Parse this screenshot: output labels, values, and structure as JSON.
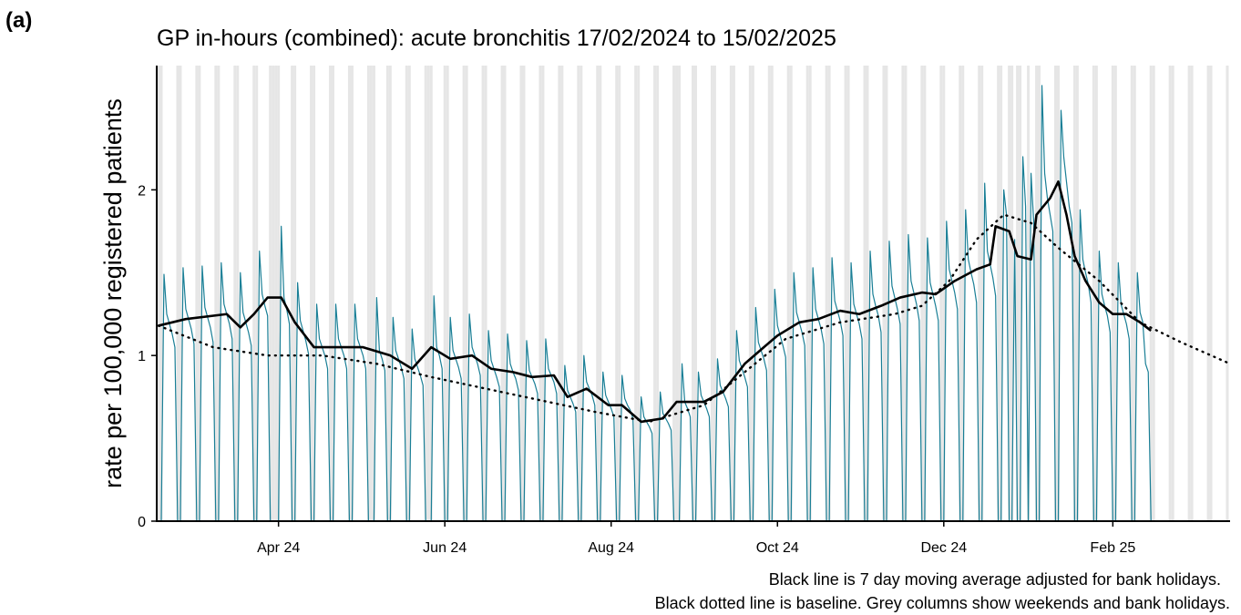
{
  "chart_data": {
    "type": "line",
    "panel_label": "(a)",
    "title": "GP in-hours (combined): acute bronchitis 17/02/2024 to 15/02/2025",
    "y_label": "rate per 100,000 registered patients",
    "notes": [
      "Black line is 7 day moving average adjusted for bank holidays.",
      "Black dotted line is baseline. Grey columns show weekends and bank holidays."
    ],
    "xlim": [
      0,
      393
    ],
    "xticks": [
      {
        "value": 44,
        "label": "Apr 24"
      },
      {
        "value": 105,
        "label": "Jun 24"
      },
      {
        "value": 166,
        "label": "Aug 24"
      },
      {
        "value": 227,
        "label": "Oct 24"
      },
      {
        "value": 288,
        "label": "Dec 24"
      },
      {
        "value": 350,
        "label": "Feb 25"
      }
    ],
    "ylim": [
      0,
      2.75
    ],
    "yticks": [
      0,
      1,
      2
    ],
    "shade_color": "#e6e6e6",
    "shaded_days": [
      0,
      1,
      7,
      8,
      14,
      15,
      21,
      22,
      28,
      29,
      35,
      36,
      42,
      43,
      49,
      50,
      56,
      57,
      63,
      64,
      70,
      71,
      77,
      78,
      84,
      85,
      91,
      92,
      98,
      99,
      105,
      106,
      112,
      113,
      119,
      120,
      126,
      127,
      133,
      134,
      140,
      141,
      147,
      148,
      154,
      155,
      161,
      162,
      168,
      169,
      175,
      176,
      182,
      183,
      189,
      190,
      196,
      197,
      203,
      204,
      210,
      211,
      217,
      218,
      224,
      225,
      231,
      232,
      238,
      239,
      245,
      246,
      252,
      253,
      259,
      260,
      266,
      267,
      273,
      274,
      280,
      281,
      287,
      288,
      294,
      295,
      301,
      302,
      308,
      309,
      315,
      316,
      322,
      323,
      329,
      330,
      336,
      337,
      343,
      344,
      350,
      351,
      357,
      358,
      364,
      365,
      371,
      372,
      378,
      379,
      385,
      386,
      392,
      41,
      44,
      79,
      100,
      191,
      312,
      313,
      319
    ],
    "series": [
      {
        "style": "thin",
        "color": "#1a7f96",
        "x": [
          0,
          1,
          2,
          3,
          4,
          5,
          6,
          7,
          8,
          9,
          10,
          11,
          12,
          13,
          14,
          15,
          16,
          17,
          18,
          19,
          20,
          21,
          22,
          23,
          24,
          25,
          26,
          27,
          28,
          29,
          30,
          31,
          32,
          33,
          34,
          35,
          36,
          37,
          38,
          39,
          40,
          41,
          42,
          43,
          44,
          45,
          46,
          47,
          48,
          49,
          50,
          51,
          52,
          53,
          54,
          55,
          56,
          57,
          58,
          59,
          60,
          61,
          62,
          63,
          64,
          65,
          66,
          67,
          68,
          69,
          70,
          71,
          72,
          73,
          74,
          75,
          76,
          77,
          78,
          79,
          80,
          81,
          82,
          83,
          84,
          85,
          86,
          87,
          88,
          89,
          90,
          91,
          92,
          93,
          94,
          95,
          96,
          97,
          98,
          99,
          100,
          101,
          102,
          103,
          104,
          105,
          106,
          107,
          108,
          109,
          110,
          111,
          112,
          113,
          114,
          115,
          116,
          117,
          118,
          119,
          120,
          121,
          122,
          123,
          124,
          125,
          126,
          127,
          128,
          129,
          130,
          131,
          132,
          133,
          134,
          135,
          136,
          137,
          138,
          139,
          140,
          141,
          142,
          143,
          144,
          145,
          146,
          147,
          148,
          149,
          150,
          151,
          152,
          153,
          154,
          155,
          156,
          157,
          158,
          159,
          160,
          161,
          162,
          163,
          164,
          165,
          166,
          167,
          168,
          169,
          170,
          171,
          172,
          173,
          174,
          175,
          176,
          177,
          178,
          179,
          180,
          181,
          182,
          183,
          184,
          185,
          186,
          187,
          188,
          189,
          190,
          191,
          192,
          193,
          194,
          195,
          196,
          197,
          198,
          199,
          200,
          201,
          202,
          203,
          204,
          205,
          206,
          207,
          208,
          209,
          210,
          211,
          212,
          213,
          214,
          215,
          216,
          217,
          218,
          219,
          220,
          221,
          222,
          223,
          224,
          225,
          226,
          227,
          228,
          229,
          230,
          231,
          232,
          233,
          234,
          235,
          236,
          237,
          238,
          239,
          240,
          241,
          242,
          243,
          244,
          245,
          246,
          247,
          248,
          249,
          250,
          251,
          252,
          253,
          254,
          255,
          256,
          257,
          258,
          259,
          260,
          261,
          262,
          263,
          264,
          265,
          266,
          267,
          268,
          269,
          270,
          271,
          272,
          273,
          274,
          275,
          276,
          277,
          278,
          279,
          280,
          281,
          282,
          283,
          284,
          285,
          286,
          287,
          288,
          289,
          290,
          291,
          292,
          293,
          294,
          295,
          296,
          297,
          298,
          299,
          300,
          301,
          302,
          303,
          304,
          305,
          306,
          307,
          308,
          309,
          310,
          311,
          312,
          313,
          314,
          315,
          316,
          317,
          318,
          319,
          320,
          321,
          322,
          323,
          324,
          325,
          326,
          327,
          328,
          329,
          330,
          331,
          332,
          333,
          334,
          335,
          336,
          337,
          338,
          339,
          340,
          341,
          342,
          343,
          344,
          345,
          346,
          347,
          348,
          349,
          350,
          351,
          352,
          353,
          354,
          355,
          356,
          357,
          358,
          359,
          360,
          361,
          362,
          363,
          364
        ],
        "values": [
          0,
          0,
          1.49,
          1.25,
          1.19,
          1.13,
          1.05,
          0,
          0,
          1.53,
          1.28,
          1.22,
          1.16,
          1.07,
          0,
          0,
          1.54,
          1.29,
          1.23,
          1.17,
          1.08,
          0,
          0,
          1.56,
          1.31,
          1.25,
          1.19,
          1.1,
          0,
          0,
          1.5,
          1.26,
          1.2,
          1.14,
          1.06,
          0,
          0,
          1.63,
          1.37,
          1.3,
          1.24,
          0,
          0,
          0,
          0,
          1.78,
          1.35,
          1.28,
          1.19,
          0,
          0,
          1.44,
          1.21,
          1.15,
          1.09,
          1.01,
          0,
          0,
          1.31,
          1.1,
          1.05,
          1.0,
          0.92,
          0,
          0,
          1.31,
          1.1,
          1.05,
          1.0,
          0.92,
          0,
          0,
          1.31,
          1.1,
          1.05,
          1.0,
          0.92,
          0,
          0,
          0,
          1.35,
          1.03,
          0.98,
          0.91,
          0,
          0,
          1.23,
          1.03,
          0.98,
          0.93,
          0.86,
          0,
          0,
          1.16,
          0.98,
          0.93,
          0.88,
          0.82,
          0,
          0,
          0,
          1.36,
          1.05,
          1.0,
          0.92,
          0,
          0,
          1.23,
          1.03,
          0.98,
          0.93,
          0.86,
          0,
          0,
          1.25,
          1.05,
          1.0,
          0.95,
          0.88,
          0,
          0,
          1.15,
          0.97,
          0.92,
          0.87,
          0.81,
          0,
          0,
          1.13,
          0.95,
          0.9,
          0.86,
          0.79,
          0,
          0,
          1.09,
          0.91,
          0.87,
          0.83,
          0.77,
          0,
          0,
          1.1,
          0.92,
          0.88,
          0.84,
          0.77,
          0,
          0,
          0.94,
          0.79,
          0.75,
          0.71,
          0.66,
          0,
          0,
          1.0,
          0.84,
          0.8,
          0.76,
          0.7,
          0,
          0,
          0.9,
          0.76,
          0.72,
          0.68,
          0.63,
          0,
          0,
          0.88,
          0.74,
          0.7,
          0.67,
          0.62,
          0,
          0,
          0.75,
          0.63,
          0.6,
          0.57,
          0.53,
          0,
          0,
          0.78,
          0.65,
          0.62,
          0.59,
          0.55,
          0,
          0,
          0,
          0.95,
          0.72,
          0.68,
          0.63,
          0,
          0,
          0.9,
          0.76,
          0.72,
          0.68,
          0.63,
          0,
          0,
          0.98,
          0.82,
          0.78,
          0.74,
          0.69,
          0,
          0,
          1.15,
          0.97,
          0.92,
          0.87,
          0.81,
          0,
          0,
          1.29,
          1.08,
          1.03,
          0.98,
          0.91,
          0,
          0,
          1.4,
          1.18,
          1.12,
          1.06,
          0.99,
          0,
          0,
          1.5,
          1.26,
          1.2,
          1.14,
          1.06,
          0,
          0,
          1.53,
          1.28,
          1.22,
          1.16,
          1.07,
          0,
          0,
          1.59,
          1.33,
          1.27,
          1.21,
          1.12,
          0,
          0,
          1.56,
          1.31,
          1.25,
          1.19,
          1.1,
          0,
          0,
          1.63,
          1.37,
          1.3,
          1.24,
          1.14,
          0,
          0,
          1.69,
          1.42,
          1.35,
          1.28,
          1.19,
          0,
          0,
          1.73,
          1.45,
          1.38,
          1.31,
          1.21,
          0,
          0,
          1.71,
          1.44,
          1.37,
          1.3,
          1.21,
          0,
          0,
          1.81,
          1.52,
          1.45,
          1.38,
          1.28,
          0,
          0,
          1.88,
          1.58,
          1.5,
          1.43,
          1.32,
          0,
          0,
          2.04,
          1.63,
          1.55,
          1.47,
          1.36,
          0,
          0,
          2.0,
          1.85,
          0,
          0,
          1.7,
          0,
          0,
          2.2,
          1.9,
          0,
          2.1,
          1.8,
          0,
          0,
          2.63,
          2.1,
          1.95,
          1.85,
          1.75,
          0,
          0,
          2.48,
          2.2,
          2.05,
          1.9,
          1.8,
          0,
          0,
          1.88,
          1.58,
          1.5,
          1.43,
          1.32,
          0,
          0,
          1.63,
          1.37,
          1.3,
          1.24,
          1.14,
          0,
          0,
          1.56,
          1.31,
          1.25,
          1.19,
          1.1,
          0,
          0,
          1.5,
          1.26,
          1.2,
          0.95,
          0.9,
          0
        ]
      },
      {
        "style": "bold",
        "color": "#000000",
        "x": [
          0,
          10,
          25,
          30,
          35,
          40,
          45,
          50,
          57,
          65,
          75,
          85,
          93,
          100,
          107,
          115,
          122,
          130,
          137,
          145,
          150,
          157,
          165,
          170,
          177,
          185,
          190,
          200,
          207,
          215,
          222,
          227,
          235,
          242,
          250,
          257,
          265,
          272,
          280,
          285,
          292,
          300,
          305,
          307,
          312,
          315,
          320,
          322,
          327,
          330,
          333,
          336,
          340,
          345,
          350,
          355,
          360,
          364
        ],
        "values": [
          1.18,
          1.22,
          1.25,
          1.17,
          1.25,
          1.35,
          1.35,
          1.2,
          1.05,
          1.05,
          1.05,
          1.0,
          0.92,
          1.05,
          0.98,
          1.0,
          0.92,
          0.9,
          0.87,
          0.88,
          0.75,
          0.8,
          0.7,
          0.7,
          0.6,
          0.62,
          0.72,
          0.72,
          0.78,
          0.95,
          1.05,
          1.12,
          1.2,
          1.22,
          1.27,
          1.25,
          1.3,
          1.35,
          1.38,
          1.37,
          1.45,
          1.52,
          1.55,
          1.78,
          1.75,
          1.6,
          1.58,
          1.85,
          1.95,
          2.05,
          1.85,
          1.6,
          1.45,
          1.32,
          1.25,
          1.25,
          1.2,
          1.15
        ]
      },
      {
        "style": "dotted",
        "color": "#000000",
        "x": [
          0,
          20,
          40,
          60,
          80,
          100,
          120,
          140,
          160,
          180,
          200,
          215,
          230,
          250,
          270,
          280,
          290,
          300,
          310,
          320,
          330,
          345,
          360,
          375,
          393
        ],
        "values": [
          1.18,
          1.05,
          1.0,
          1.0,
          0.95,
          0.87,
          0.8,
          0.73,
          0.66,
          0.6,
          0.7,
          0.9,
          1.1,
          1.2,
          1.25,
          1.3,
          1.45,
          1.7,
          1.85,
          1.8,
          1.65,
          1.45,
          1.2,
          1.08,
          0.95
        ]
      }
    ]
  }
}
